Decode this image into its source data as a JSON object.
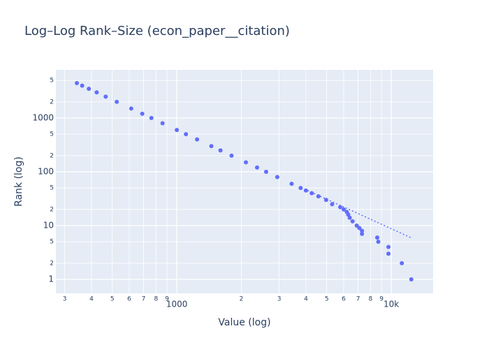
{
  "chart_data": {
    "type": "scatter",
    "title": "Log–Log Rank–Size (econ_paper__citation)",
    "x_label": "Value (log)",
    "y_label": "Rank (log)",
    "log_x": true,
    "log_y": true,
    "grid": true,
    "xlim": [
      273,
      15670
    ],
    "ylim": [
      0.55,
      7870
    ],
    "xticks": [
      {
        "value": 300,
        "label": "3"
      },
      {
        "value": 400,
        "label": "4"
      },
      {
        "value": 500,
        "label": "5"
      },
      {
        "value": 600,
        "label": "6"
      },
      {
        "value": 700,
        "label": "7"
      },
      {
        "value": 800,
        "label": "8"
      },
      {
        "value": 900,
        "label": "9"
      },
      1000,
      {
        "value": 2000,
        "label": "2"
      },
      {
        "value": 3000,
        "label": "3"
      },
      {
        "value": 4000,
        "label": "4"
      },
      {
        "value": 5000,
        "label": "5"
      },
      {
        "value": 6000,
        "label": "6"
      },
      {
        "value": 7000,
        "label": "7"
      },
      {
        "value": 8000,
        "label": "8"
      },
      {
        "value": 9000,
        "label": "9"
      },
      {
        "value": 10000,
        "label": "10k"
      }
    ],
    "yticks": [
      1,
      2,
      5,
      10,
      {
        "value": 20,
        "label": "2"
      },
      {
        "value": 50,
        "label": "5"
      },
      100,
      {
        "value": 200,
        "label": "2"
      },
      {
        "value": 500,
        "label": "5"
      },
      1000,
      {
        "value": 2000,
        "label": "2"
      },
      {
        "value": 5000,
        "label": "5"
      }
    ],
    "series": [
      {
        "mode": "markers",
        "color": "#636efa",
        "x": [
          342,
          362,
          389,
          423,
          466,
          525,
          613,
          690,
          761,
          858,
          1000,
          1103,
          1243,
          1449,
          1598,
          1800,
          2100,
          2367,
          2609,
          2940,
          3430,
          3780,
          3998,
          4257,
          4574,
          4970,
          5300,
          5780,
          6000,
          6200,
          6300,
          6400,
          6600,
          6900,
          7100,
          7300,
          7300,
          8600,
          8700,
          9700,
          9700,
          11200,
          12400
        ],
        "values": [
          4460,
          4000,
          3500,
          3000,
          2500,
          2000,
          1500,
          1200,
          1000,
          800,
          600,
          500,
          400,
          300,
          250,
          200,
          150,
          120,
          100,
          80,
          60,
          50,
          45,
          40,
          35,
          30,
          25,
          22,
          20,
          18,
          16,
          14,
          12,
          10,
          9,
          8,
          7,
          6,
          5,
          4,
          3,
          2,
          1
        ]
      },
      {
        "mode": "line",
        "dash": "dot",
        "color": "#636efa",
        "x": [
          4070,
          12530
        ],
        "values": [
          45,
          5.8
        ]
      }
    ]
  }
}
